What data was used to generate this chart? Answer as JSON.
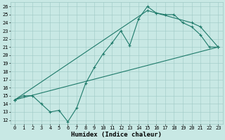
{
  "xlabel": "Humidex (Indice chaleur)",
  "xlim": [
    -0.5,
    23.5
  ],
  "ylim": [
    11.5,
    26.5
  ],
  "yticks": [
    12,
    13,
    14,
    15,
    16,
    17,
    18,
    19,
    20,
    21,
    22,
    23,
    24,
    25,
    26
  ],
  "xticks": [
    0,
    1,
    2,
    3,
    4,
    5,
    6,
    7,
    8,
    9,
    10,
    11,
    12,
    13,
    14,
    15,
    16,
    17,
    18,
    19,
    20,
    21,
    22,
    23
  ],
  "line_color": "#1e7a6a",
  "bg_color": "#c8e8e4",
  "grid_color": "#9ec8c4",
  "line1_x": [
    0,
    1,
    2,
    3,
    4,
    5,
    6,
    7,
    8,
    9,
    10,
    11,
    12,
    13,
    14,
    15,
    16,
    17,
    18,
    19,
    20,
    21,
    22,
    23
  ],
  "line1_y": [
    14.5,
    15.0,
    15.0,
    14.0,
    13.0,
    13.2,
    11.8,
    13.5,
    16.5,
    18.5,
    20.2,
    21.5,
    23.0,
    21.2,
    24.5,
    26.0,
    25.2,
    25.0,
    25.0,
    24.0,
    23.5,
    22.5,
    21.0,
    21.0
  ],
  "line2_x": [
    0,
    23
  ],
  "line2_y": [
    14.5,
    21.0
  ],
  "line3_x": [
    0,
    15,
    20,
    21,
    23
  ],
  "line3_y": [
    14.5,
    25.5,
    24.0,
    23.5,
    21.0
  ],
  "marker": "+",
  "markersize": 3.0,
  "linewidth": 0.8,
  "tick_fontsize": 5.0,
  "xlabel_fontsize": 6.5
}
